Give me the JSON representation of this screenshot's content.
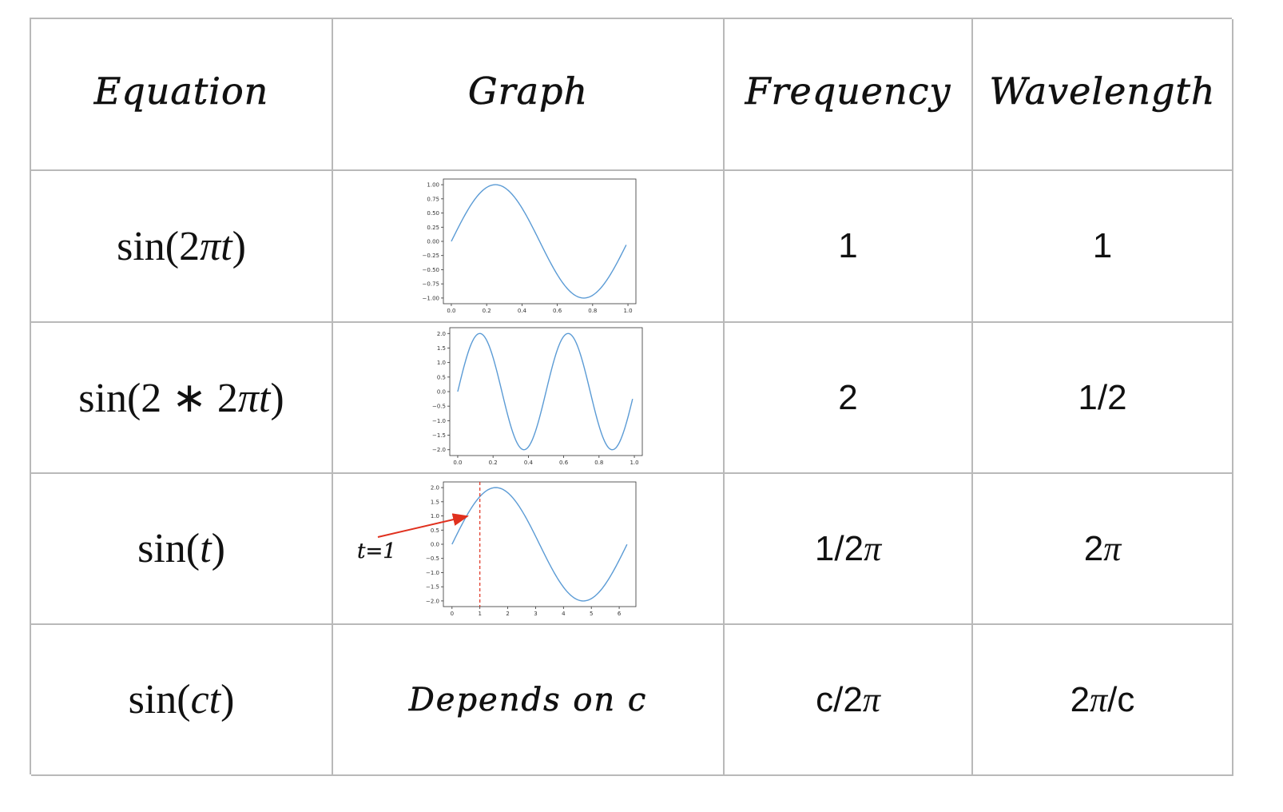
{
  "headers": {
    "equation": "Equation",
    "graph": "Graph",
    "frequency": "Frequency",
    "wavelength": "Wavelength"
  },
  "rows": [
    {
      "equation": {
        "pre": "sin(2",
        "pi": "π",
        "var": "t",
        "post": ")"
      },
      "frequency": "1",
      "wavelength": "1"
    },
    {
      "equation": {
        "pre": "sin(2 ∗ 2",
        "pi": "π",
        "var": "t",
        "post": ")"
      },
      "frequency": "2",
      "wavelength": "1/2"
    },
    {
      "equation": {
        "pre": "sin(",
        "var": "t",
        "post": ")"
      },
      "frequency": {
        "pre": "1/2",
        "pi": "π"
      },
      "wavelength": {
        "pre": "2",
        "pi": "π"
      },
      "annotation": "t=1"
    },
    {
      "equation": {
        "pre": "sin(",
        "var": "ct",
        "post": ")"
      },
      "graph_text": "Depends on c",
      "frequency": {
        "pre": "c/2",
        "pi": "π"
      },
      "wavelength": {
        "pre": "2",
        "pi": "π",
        "post": "/c"
      }
    }
  ],
  "colors": {
    "line": "#5b9bd5",
    "marker": "#e0301e",
    "grid_border": "#b9b9b9"
  },
  "chart_data": [
    {
      "type": "line",
      "function": "sin(2πt)",
      "x_range": [
        0,
        1
      ],
      "xticks": [
        "0.0",
        "0.2",
        "0.4",
        "0.6",
        "0.8",
        "1.0"
      ],
      "xtick_values": [
        0,
        0.2,
        0.4,
        0.6,
        0.8,
        1.0
      ],
      "yticks": [
        "1.00",
        "0.75",
        "0.50",
        "0.25",
        "0.00",
        "−0.25",
        "−0.50",
        "−0.75",
        "−1.00"
      ],
      "ytick_values": [
        1,
        0.75,
        0.5,
        0.25,
        0,
        -0.25,
        -0.5,
        -0.75,
        -1
      ],
      "xlim": [
        -0.045,
        1.045
      ],
      "ylim": [
        -1.1,
        1.1
      ],
      "frequency": 1,
      "amplitude": 1,
      "x": [
        0,
        0.1,
        0.2,
        0.25,
        0.3,
        0.4,
        0.5,
        0.6,
        0.7,
        0.75,
        0.8,
        0.9,
        0.99
      ],
      "y": [
        0,
        0.588,
        0.951,
        1,
        0.951,
        0.588,
        0,
        -0.588,
        -0.951,
        -1,
        -0.951,
        -0.588,
        -0.063
      ]
    },
    {
      "type": "line",
      "function": "sin(2∗2πt)",
      "x_range": [
        0,
        1
      ],
      "xticks": [
        "0.0",
        "0.2",
        "0.4",
        "0.6",
        "0.8",
        "1.0"
      ],
      "xtick_values": [
        0,
        0.2,
        0.4,
        0.6,
        0.8,
        1.0
      ],
      "yticks": [
        "2.0",
        "1.5",
        "1.0",
        "0.5",
        "0.0",
        "−0.5",
        "−1.0",
        "−1.5",
        "−2.0"
      ],
      "ytick_values": [
        2,
        1.5,
        1,
        0.5,
        0,
        -0.5,
        -1,
        -1.5,
        -2
      ],
      "xlim": [
        -0.045,
        1.045
      ],
      "ylim": [
        -2.2,
        2.2
      ],
      "frequency": 2,
      "amplitude": 2,
      "x": [
        0,
        0.125,
        0.25,
        0.375,
        0.5,
        0.625,
        0.75,
        0.875,
        0.99
      ],
      "y": [
        0,
        2,
        0,
        -2,
        0,
        2,
        0,
        -2,
        -0.25
      ]
    },
    {
      "type": "line",
      "function": "sin(t)",
      "x_range": [
        0,
        6.28
      ],
      "xticks": [
        "0",
        "1",
        "2",
        "3",
        "4",
        "5",
        "6"
      ],
      "xtick_values": [
        0,
        1,
        2,
        3,
        4,
        5,
        6
      ],
      "yticks": [
        "2.0",
        "1.5",
        "1.0",
        "0.5",
        "0.0",
        "−0.5",
        "−1.0",
        "−1.5",
        "−2.0"
      ],
      "ytick_values": [
        2,
        1.5,
        1,
        0.5,
        0,
        -0.5,
        -1,
        -1.5,
        -2
      ],
      "xlim": [
        -0.31,
        6.6
      ],
      "ylim": [
        -2.2,
        2.2
      ],
      "frequency": 0.15915,
      "amplitude": 2,
      "x": [
        0,
        1,
        1.571,
        3.142,
        4.712,
        6.28
      ],
      "y": [
        0,
        1.683,
        2,
        0,
        -2,
        0
      ],
      "vline_x": 1,
      "annotation": "t=1"
    }
  ]
}
